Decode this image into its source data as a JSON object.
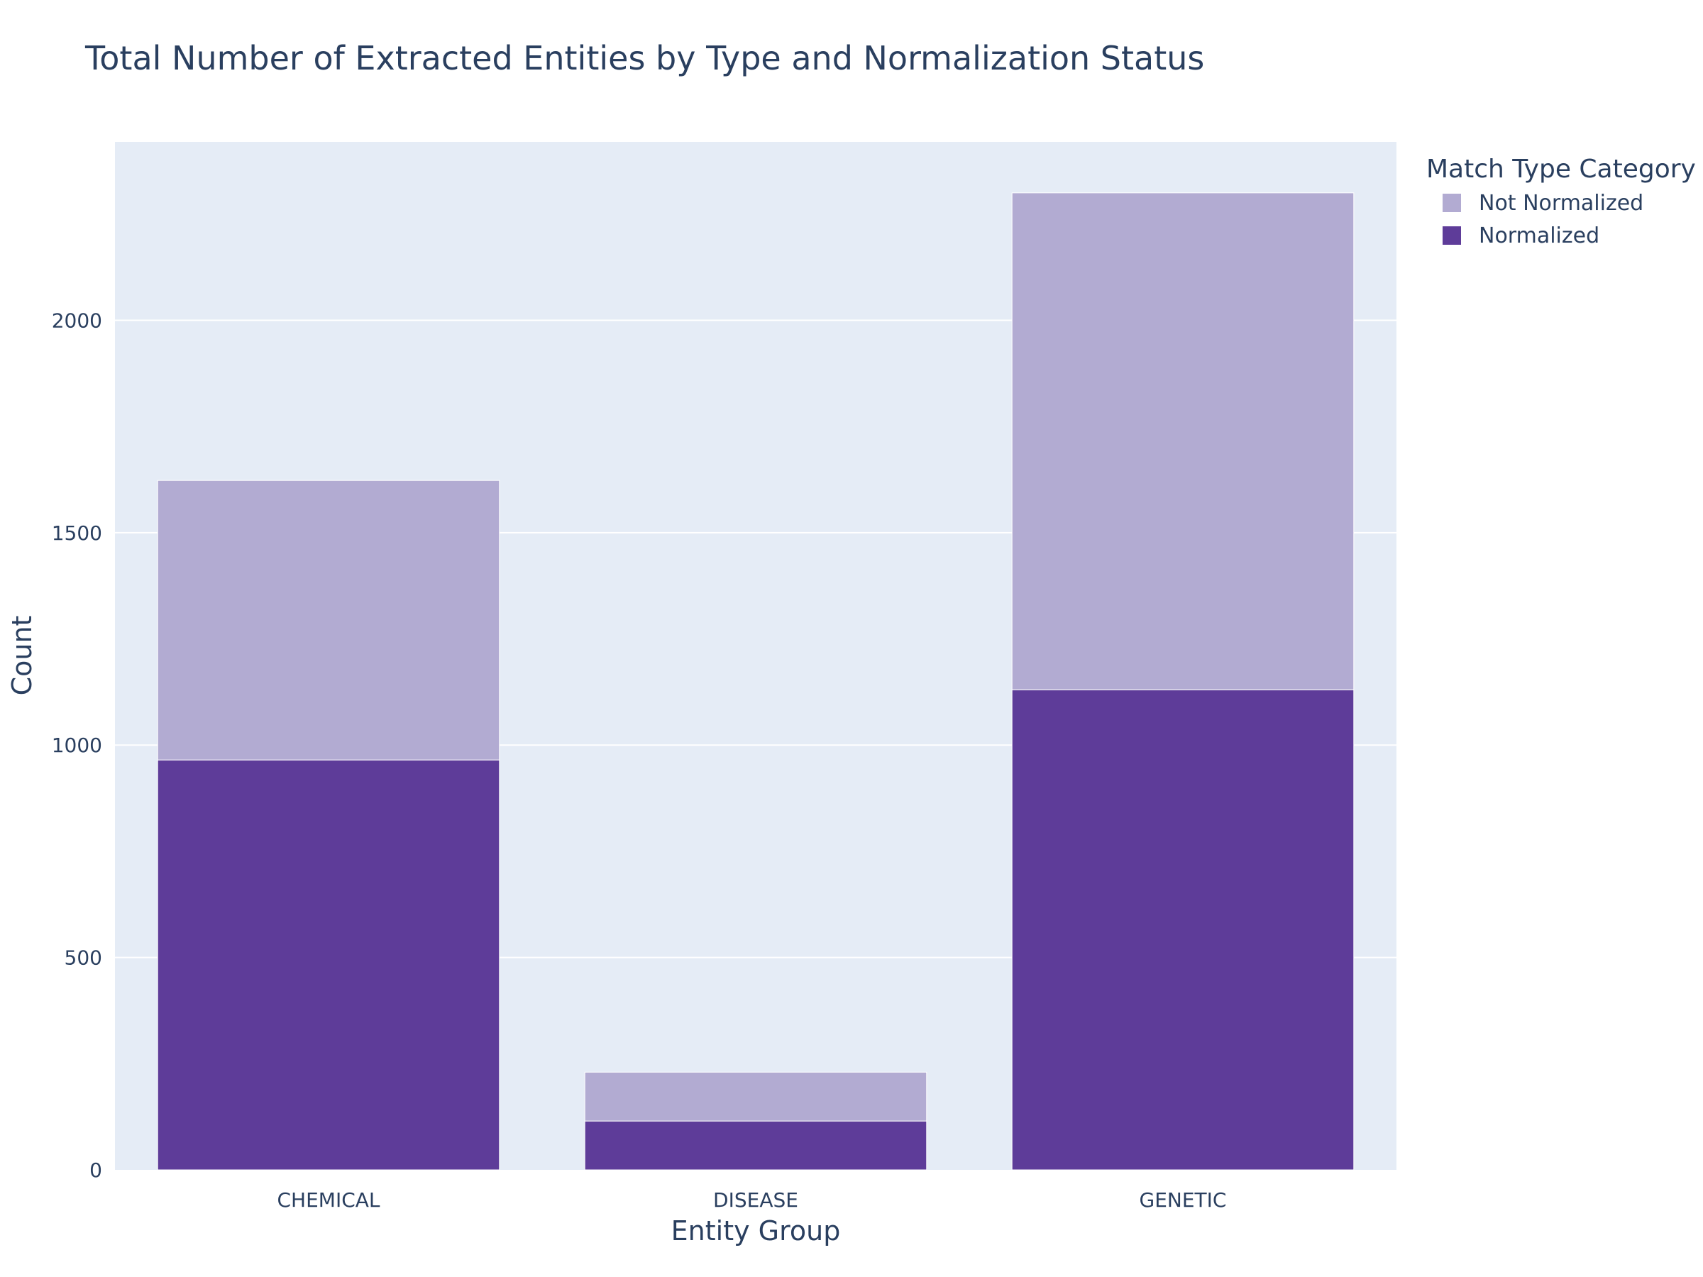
{
  "chart_data": {
    "type": "bar",
    "barmode": "stack",
    "title": "Total Number of Extracted Entities by Type and Normalization Status",
    "xlabel": "Entity Group",
    "ylabel": "Count",
    "categories": [
      "CHEMICAL",
      "DISEASE",
      "GENETIC"
    ],
    "ylim": [
      0,
      2420
    ],
    "yticks": [
      0,
      500,
      1000,
      1500,
      2000
    ],
    "grid": true,
    "plot_background": "#e5ecf6",
    "legend": {
      "title": "Match Type Category",
      "placement": "top-right outside",
      "entries": [
        "Not Normalized",
        "Normalized"
      ]
    },
    "series": [
      {
        "name": "Normalized",
        "color": "#5e3c99",
        "values": [
          965,
          115,
          1130
        ]
      },
      {
        "name": "Not Normalized",
        "color": "#b2abd2",
        "values": [
          658,
          115,
          1170
        ]
      }
    ]
  }
}
